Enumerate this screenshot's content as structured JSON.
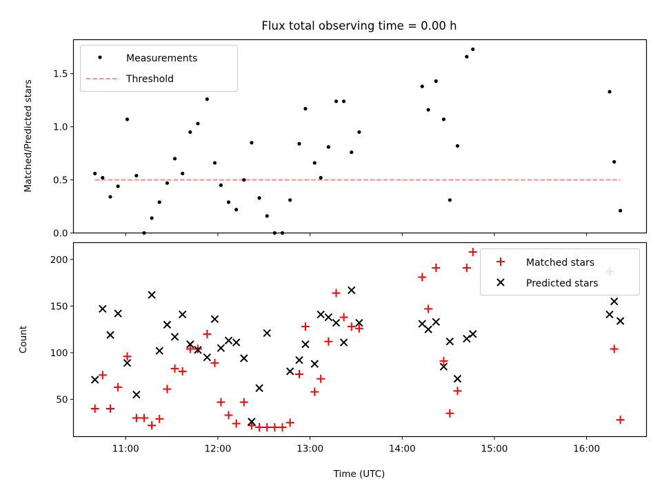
{
  "figure": {
    "title": "Flux total observing time = 0.00 h",
    "xlabel": "Time (UTC)"
  },
  "colors": {
    "measurements": "#000000",
    "threshold": "#ff8080",
    "matched": "#ff0000",
    "predicted": "#000000"
  },
  "chart_data": [
    {
      "type": "scatter",
      "panel": "top",
      "title": "Flux total observing time = 0.00 h",
      "xlabel": "",
      "ylabel": "Matched/Predicted stars",
      "xlim": [
        "10:26",
        "16:39"
      ],
      "ylim": [
        0,
        1.82
      ],
      "yticks": [
        0.0,
        0.5,
        1.0,
        1.5
      ],
      "ytick_labels": [
        "0.0",
        "0.5",
        "1.0",
        "1.5"
      ],
      "legend": "upper-left",
      "grid": false,
      "series": [
        {
          "name": "Measurements",
          "marker": "dot",
          "points": [
            [
              "10:40",
              0.56
            ],
            [
              "10:45",
              0.52
            ],
            [
              "10:50",
              0.34
            ],
            [
              "10:55",
              0.44
            ],
            [
              "11:01",
              1.07
            ],
            [
              "11:07",
              0.54
            ],
            [
              "11:12",
              0.0
            ],
            [
              "11:17",
              0.14
            ],
            [
              "11:22",
              0.29
            ],
            [
              "11:27",
              0.47
            ],
            [
              "11:32",
              0.7
            ],
            [
              "11:37",
              0.56
            ],
            [
              "11:42",
              0.95
            ],
            [
              "11:47",
              1.03
            ],
            [
              "11:53",
              1.26
            ],
            [
              "11:58",
              0.66
            ],
            [
              "12:02",
              0.45
            ],
            [
              "12:07",
              0.29
            ],
            [
              "12:12",
              0.22
            ],
            [
              "12:17",
              0.5
            ],
            [
              "12:22",
              0.85
            ],
            [
              "12:27",
              0.33
            ],
            [
              "12:32",
              0.16
            ],
            [
              "12:37",
              0.0
            ],
            [
              "12:42",
              0.0
            ],
            [
              "12:47",
              0.31
            ],
            [
              "12:53",
              0.84
            ],
            [
              "12:57",
              1.17
            ],
            [
              "13:03",
              0.66
            ],
            [
              "13:07",
              0.52
            ],
            [
              "13:12",
              0.81
            ],
            [
              "13:17",
              1.24
            ],
            [
              "13:22",
              1.24
            ],
            [
              "13:27",
              0.76
            ],
            [
              "13:32",
              0.95
            ],
            [
              "14:13",
              1.38
            ],
            [
              "14:17",
              1.16
            ],
            [
              "14:22",
              1.43
            ],
            [
              "14:27",
              1.07
            ],
            [
              "14:31",
              0.31
            ],
            [
              "14:36",
              0.82
            ],
            [
              "14:42",
              1.66
            ],
            [
              "14:46",
              1.73
            ],
            [
              "16:15",
              1.33
            ],
            [
              "16:18",
              0.67
            ],
            [
              "16:22",
              0.21
            ]
          ]
        },
        {
          "name": "Threshold",
          "style": "dashed-line",
          "points": [
            [
              "10:40",
              0.5
            ],
            [
              "16:22",
              0.5
            ]
          ]
        }
      ]
    },
    {
      "type": "scatter",
      "panel": "bottom",
      "xlabel": "Time (UTC)",
      "ylabel": "Count",
      "xlim": [
        "10:26",
        "16:39"
      ],
      "ylim": [
        10,
        218
      ],
      "xticks": [
        "11:00",
        "12:00",
        "13:00",
        "14:00",
        "15:00",
        "16:00"
      ],
      "yticks": [
        50,
        100,
        150,
        200
      ],
      "ytick_labels": [
        "50",
        "100",
        "150",
        "200"
      ],
      "legend": "upper-right",
      "grid": false,
      "series": [
        {
          "name": "Matched stars",
          "marker": "plus",
          "points": [
            [
              "10:40",
              40
            ],
            [
              "10:45",
              76
            ],
            [
              "10:50",
              40
            ],
            [
              "10:55",
              63
            ],
            [
              "11:01",
              96
            ],
            [
              "11:07",
              30
            ],
            [
              "11:12",
              30
            ],
            [
              "11:17",
              22
            ],
            [
              "11:22",
              29
            ],
            [
              "11:27",
              61
            ],
            [
              "11:32",
              83
            ],
            [
              "11:37",
              80
            ],
            [
              "11:42",
              104
            ],
            [
              "11:47",
              104
            ],
            [
              "11:53",
              120
            ],
            [
              "11:58",
              89
            ],
            [
              "12:02",
              47
            ],
            [
              "12:07",
              33
            ],
            [
              "12:12",
              24
            ],
            [
              "12:17",
              47
            ],
            [
              "12:22",
              22
            ],
            [
              "12:27",
              20
            ],
            [
              "12:32",
              20
            ],
            [
              "12:37",
              20
            ],
            [
              "12:42",
              20
            ],
            [
              "12:47",
              25
            ],
            [
              "12:53",
              77
            ],
            [
              "12:57",
              128
            ],
            [
              "13:03",
              58
            ],
            [
              "13:07",
              72
            ],
            [
              "13:12",
              112
            ],
            [
              "13:17",
              164
            ],
            [
              "13:22",
              138
            ],
            [
              "13:27",
              128
            ],
            [
              "13:32",
              126
            ],
            [
              "14:13",
              181
            ],
            [
              "14:17",
              147
            ],
            [
              "14:22",
              191
            ],
            [
              "14:27",
              91
            ],
            [
              "14:31",
              35
            ],
            [
              "14:36",
              59
            ],
            [
              "14:42",
              191
            ],
            [
              "14:46",
              208
            ],
            [
              "16:15",
              187
            ],
            [
              "16:18",
              104
            ],
            [
              "16:22",
              28
            ]
          ]
        },
        {
          "name": "Predicted stars",
          "marker": "x",
          "points": [
            [
              "10:40",
              71
            ],
            [
              "10:45",
              147
            ],
            [
              "10:50",
              119
            ],
            [
              "10:55",
              142
            ],
            [
              "11:01",
              89
            ],
            [
              "11:07",
              55
            ],
            [
              "11:17",
              162
            ],
            [
              "11:22",
              102
            ],
            [
              "11:27",
              130
            ],
            [
              "11:32",
              117
            ],
            [
              "11:37",
              141
            ],
            [
              "11:42",
              109
            ],
            [
              "11:47",
              103
            ],
            [
              "11:53",
              95
            ],
            [
              "11:58",
              136
            ],
            [
              "12:02",
              105
            ],
            [
              "12:07",
              113
            ],
            [
              "12:12",
              111
            ],
            [
              "12:17",
              94
            ],
            [
              "12:22",
              26
            ],
            [
              "12:27",
              62
            ],
            [
              "12:32",
              121
            ],
            [
              "12:47",
              80
            ],
            [
              "12:53",
              92
            ],
            [
              "12:57",
              109
            ],
            [
              "13:03",
              88
            ],
            [
              "13:07",
              141
            ],
            [
              "13:12",
              138
            ],
            [
              "13:17",
              132
            ],
            [
              "13:22",
              111
            ],
            [
              "13:27",
              167
            ],
            [
              "13:32",
              132
            ],
            [
              "14:13",
              131
            ],
            [
              "14:17",
              125
            ],
            [
              "14:22",
              133
            ],
            [
              "14:27",
              85
            ],
            [
              "14:31",
              112
            ],
            [
              "14:36",
              72
            ],
            [
              "14:42",
              115
            ],
            [
              "14:46",
              120
            ],
            [
              "16:15",
              141
            ],
            [
              "16:18",
              155
            ],
            [
              "16:22",
              134
            ]
          ]
        }
      ]
    }
  ]
}
